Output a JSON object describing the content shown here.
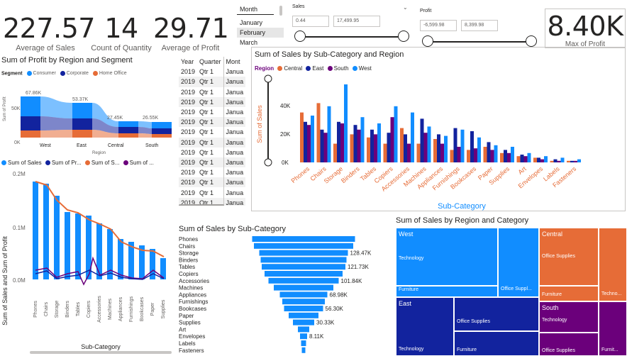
{
  "kpis": [
    {
      "value": "227.57",
      "label": "Average of Sales"
    },
    {
      "value": "14",
      "label": "Count of Quantity"
    },
    {
      "value": "29.71",
      "label": "Average of Profit"
    }
  ],
  "max_profit": {
    "value": "8.40K",
    "label": "Max of Profit"
  },
  "month_slicer": {
    "header": "Month",
    "items": [
      "January",
      "February",
      "March"
    ]
  },
  "sales_slicer": {
    "title": "Sales",
    "min": "0.44",
    "max": "17,499.95"
  },
  "profit_slicer": {
    "title": "Profit",
    "min": "-6,599.98",
    "max": "8,399.98"
  },
  "profit_region_segment": {
    "title": "Sum of Profit by Region and Segment",
    "legend_title": "Segment",
    "legend": [
      "Consumer",
      "Corporate",
      "Home Office"
    ],
    "y_label": "Sum of Profit",
    "x_label": "Region",
    "y_tick": "50K",
    "y_zero": "0K",
    "regions": [
      "West",
      "East",
      "Central",
      "South"
    ],
    "values": [
      "67.86K",
      "53.37K",
      "27.45K",
      "26.55K"
    ]
  },
  "combo": {
    "legend": [
      "Sum of Sales",
      "Sum of Pr...",
      "Sum of S...",
      "Sum of ..."
    ],
    "y_label": "Sum of Sales and Sum of Profit",
    "y_ticks": [
      "0.2M",
      "0.1M",
      "0.0M"
    ],
    "x_label": "Sub-Category",
    "categories": [
      "Phones",
      "Chairs",
      "Storage",
      "Binders",
      "Tables",
      "Copiers",
      "Accessories",
      "Machines",
      "Appliances",
      "Furnishings",
      "Bookcases",
      "Paper",
      "Supplies"
    ]
  },
  "table": {
    "headers": [
      "Year",
      "Quarter",
      "Mont"
    ],
    "rows": [
      [
        "2019",
        "Qtr 1",
        "Janua"
      ],
      [
        "2019",
        "Qtr 1",
        "Janua"
      ],
      [
        "2019",
        "Qtr 1",
        "Janua"
      ],
      [
        "2019",
        "Qtr 1",
        "Janua"
      ],
      [
        "2019",
        "Qtr 1",
        "Janua"
      ],
      [
        "2019",
        "Qtr 1",
        "Janua"
      ],
      [
        "2019",
        "Qtr 1",
        "Janua"
      ],
      [
        "2019",
        "Qtr 1",
        "Janua"
      ],
      [
        "2019",
        "Qtr 1",
        "Janua"
      ],
      [
        "2019",
        "Qtr 1",
        "Janua"
      ],
      [
        "2019",
        "Qtr 1",
        "Janua"
      ],
      [
        "2019",
        "Qtr 1",
        "Janua"
      ],
      [
        "2019",
        "Qtr 1",
        "Janua"
      ],
      [
        "2019",
        "Qtr 1",
        "Janua"
      ],
      [
        "2019",
        "Qtr 1",
        "Janua"
      ]
    ]
  },
  "clustered": {
    "title": "Sum of Sales by Sub-Category and Region",
    "legend_title": "Region",
    "legend": [
      "Central",
      "East",
      "South",
      "West"
    ],
    "colors": [
      "#e66c37",
      "#12239e",
      "#6b007b",
      "#118dff"
    ],
    "y_label": "Sum of Sales",
    "y_ticks": [
      "40K",
      "20K",
      "0K"
    ],
    "x_label": "Sub-Category",
    "categories": [
      "Phones",
      "Chairs",
      "Storage",
      "Binders",
      "Tables",
      "Copiers",
      "Accessories",
      "Machines",
      "Appliances",
      "Furnishings",
      "Bookcases",
      "Paper",
      "Supplies",
      "Art",
      "Envelopes",
      "Labels",
      "Fasteners"
    ]
  },
  "funnel": {
    "title": "Sum of Sales by Sub-Category",
    "categories": [
      "Phones",
      "Chairs",
      "Storage",
      "Binders",
      "Tables",
      "Copiers",
      "Accessories",
      "Machines",
      "Appliances",
      "Furnishings",
      "Bookcases",
      "Paper",
      "Supplies",
      "Art",
      "Envelopes",
      "Labels",
      "Fasteners"
    ],
    "value_labels": [
      "",
      "",
      "128.47K",
      "",
      "121.73K",
      "",
      "101.84K",
      "",
      "68.98K",
      "",
      "56.30K",
      "",
      "30.33K",
      "",
      "8.11K",
      "",
      ""
    ]
  },
  "treemap": {
    "title": "Sum of Sales by Region and Category",
    "regions": [
      "West",
      "East",
      "Central",
      "South"
    ],
    "labels": {
      "west_tech": "Technology",
      "west_furn": "Furniture",
      "west_office": "Office Suppl...",
      "east_tech": "Technology",
      "east_office": "Office Supplies",
      "east_furn": "Furniture",
      "central_office": "Office Supplies",
      "central_furn": "Furniture",
      "central_tech": "Techno...",
      "south_tech": "Technology",
      "south_office": "Office Supplies",
      "south_furn": "Furnit..."
    }
  }
}
